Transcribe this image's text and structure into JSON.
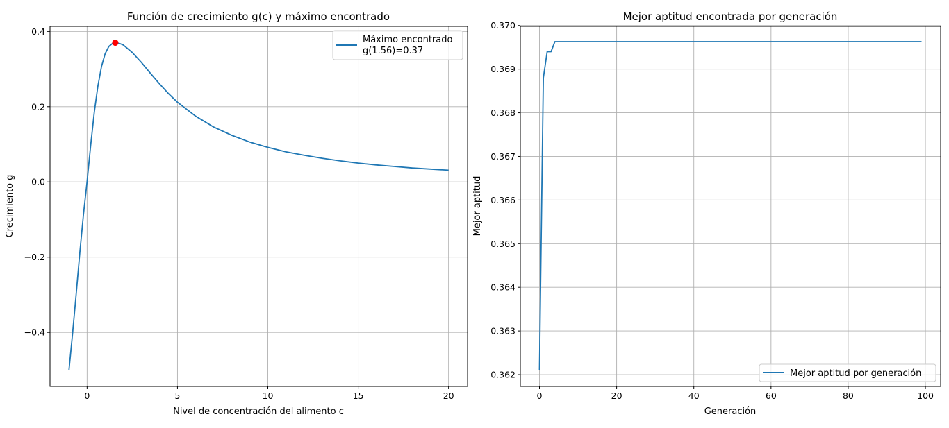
{
  "colors": {
    "line": "#1f77b4",
    "marker": "#ff0000",
    "grid": "#b0b0b0"
  },
  "chart_data": [
    {
      "type": "line",
      "title": "Función de crecimiento g(c) y máximo encontrado",
      "xlabel": "Nivel de concentración del alimento c",
      "ylabel": "Crecimiento g",
      "xlim": [
        -2.05,
        21.05
      ],
      "ylim": [
        -0.5435,
        0.4135
      ],
      "xticks": [
        0,
        5,
        10,
        15,
        20
      ],
      "yticks": [
        -0.4,
        -0.2,
        0.0,
        0.2,
        0.4
      ],
      "xtick_labels": [
        "0",
        "5",
        "10",
        "15",
        "20"
      ],
      "ytick_labels": [
        "−0.4",
        "−0.2",
        "0.0",
        "0.2",
        "0.4"
      ],
      "grid": true,
      "legend_position": "top-right",
      "series": [
        {
          "name": "Máximo encontrado\ng(1.56)=0.37",
          "x": [
            -1,
            -0.8,
            -0.6,
            -0.4,
            -0.2,
            0,
            0.2,
            0.4,
            0.6,
            0.8,
            1,
            1.2,
            1.4,
            1.6,
            1.8,
            2,
            2.5,
            3,
            3.5,
            4,
            4.5,
            5,
            6,
            7,
            8,
            9,
            10,
            11,
            12,
            13,
            14,
            15,
            16,
            17,
            18,
            19,
            20
          ],
          "y": [
            -0.5,
            -0.402,
            -0.297,
            -0.188,
            -0.087,
            0.0,
            0.097,
            0.185,
            0.255,
            0.307,
            0.341,
            0.36,
            0.368,
            0.37,
            0.368,
            0.364,
            0.344,
            0.318,
            0.289,
            0.261,
            0.235,
            0.212,
            0.175,
            0.146,
            0.124,
            0.106,
            0.092,
            0.08,
            0.071,
            0.063,
            0.056,
            0.05,
            0.045,
            0.041,
            0.037,
            0.034,
            0.031
          ]
        }
      ],
      "points": [
        {
          "x": 1.56,
          "y": 0.37
        }
      ]
    },
    {
      "type": "line",
      "title": "Mejor aptitud encontrada por generación",
      "xlabel": "Generación",
      "ylabel": "Mejor aptitud",
      "xlim": [
        -4.95,
        103.95
      ],
      "ylim": [
        0.36173,
        0.36998
      ],
      "xticks": [
        0,
        20,
        40,
        60,
        80,
        100
      ],
      "yticks": [
        0.362,
        0.363,
        0.364,
        0.365,
        0.366,
        0.367,
        0.368,
        0.369,
        0.37
      ],
      "xtick_labels": [
        "0",
        "20",
        "40",
        "60",
        "80",
        "100"
      ],
      "ytick_labels": [
        "0.362",
        "0.363",
        "0.364",
        "0.365",
        "0.366",
        "0.367",
        "0.368",
        "0.369",
        "0.370"
      ],
      "grid": true,
      "legend_position": "bottom-right",
      "series": [
        {
          "name": "Mejor aptitud por generación",
          "x": [
            0,
            1,
            2,
            3,
            4,
            99
          ],
          "y": [
            0.3621,
            0.3688,
            0.3694,
            0.3694,
            0.36963,
            0.36963
          ]
        }
      ]
    }
  ]
}
